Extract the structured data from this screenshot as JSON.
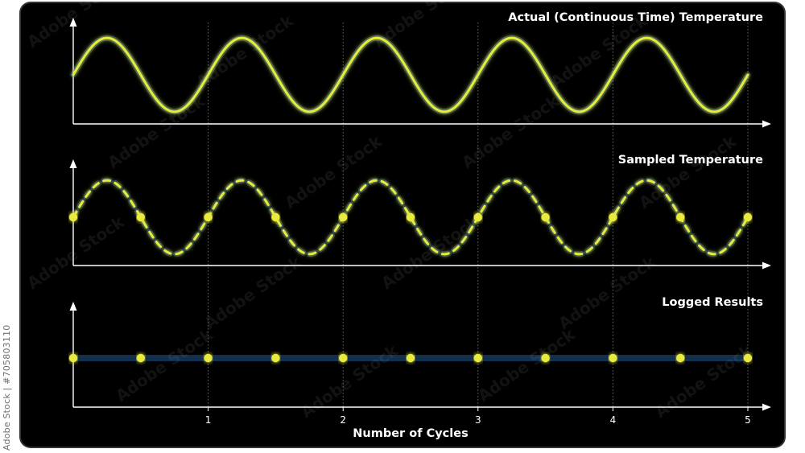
{
  "watermark": {
    "brand": "Adobe Stock",
    "side_label": "Adobe Stock | #705803110"
  },
  "chart_data": {
    "type": "line",
    "xlabel": "Number of Cycles",
    "x_ticks": [
      1,
      2,
      3,
      4,
      5
    ],
    "xlim": [
      0,
      5
    ],
    "ylim": [
      -1.2,
      1.2
    ],
    "grid": "dotted vertical lines at each 1 cycle",
    "colors": {
      "signal": "#e8ea3c",
      "glow": "#3aa0ff",
      "axis": "#ffffff",
      "grid": "#6a6a6a"
    },
    "panels": [
      {
        "title": "Actual (Continuous Time) Temperature",
        "style": "solid",
        "function": "sine",
        "cycles": 5,
        "amplitude": 1
      },
      {
        "title": "Sampled Temperature",
        "style": "dashed",
        "function": "sine",
        "cycles": 5,
        "amplitude": 1,
        "sample_points": {
          "x": [
            0,
            0.5,
            1,
            1.5,
            2,
            2.5,
            3,
            3.5,
            4,
            4.5,
            5
          ],
          "y": [
            0,
            0,
            0,
            0,
            0,
            0,
            0,
            0,
            0,
            0,
            0
          ]
        }
      },
      {
        "title": "Logged Results",
        "style": "solid",
        "points": {
          "x": [
            0,
            0.5,
            1,
            1.5,
            2,
            2.5,
            3,
            3.5,
            4,
            4.5,
            5
          ],
          "y": [
            0,
            0,
            0,
            0,
            0,
            0,
            0,
            0,
            0,
            0,
            0
          ]
        }
      }
    ]
  }
}
